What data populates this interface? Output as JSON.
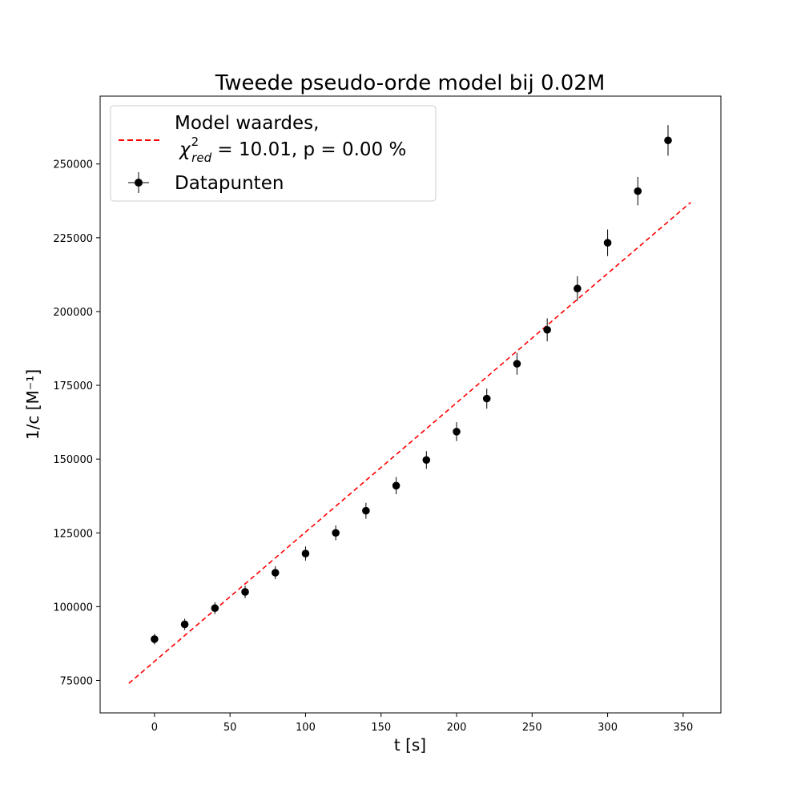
{
  "chart_data": {
    "type": "scatter",
    "title": "Tweede pseudo-orde model bij 0.02M",
    "xlabel": "t [s]",
    "ylabel": "1/c [M⁻¹]",
    "xlim": [
      -36,
      375
    ],
    "ylim": [
      64000,
      273000
    ],
    "x_ticks": [
      0,
      50,
      100,
      150,
      200,
      250,
      300,
      350
    ],
    "y_ticks": [
      75000,
      100000,
      125000,
      150000,
      175000,
      200000,
      225000,
      250000
    ],
    "grid": false,
    "legend_position": "top-left",
    "legend": {
      "model_label_line1": "Model waardes,",
      "model_chi_symbol": "χ",
      "model_chi_sub": "red",
      "model_chi_sup": "2",
      "model_stats": " = 10.01, p = 0.00 %",
      "data_label": "Datapunten"
    },
    "series": [
      {
        "name": "Datapunten",
        "kind": "errorbar",
        "color": "#000000",
        "x": [
          0,
          20,
          40,
          60,
          80,
          100,
          120,
          140,
          160,
          180,
          200,
          220,
          240,
          260,
          280,
          300,
          320,
          340
        ],
        "y": [
          89000,
          94000,
          99500,
          105000,
          111500,
          118000,
          125000,
          132500,
          141000,
          149700,
          159300,
          170500,
          182300,
          193800,
          207800,
          223300,
          240800,
          258000
        ],
        "yerr": [
          1800,
          1900,
          2000,
          2100,
          2200,
          2400,
          2500,
          2700,
          2900,
          3000,
          3200,
          3400,
          3700,
          3900,
          4200,
          4500,
          4800,
          5200
        ],
        "xerr": [
          0.5,
          0.5,
          0.5,
          0.5,
          0.5,
          0.5,
          0.5,
          0.5,
          0.5,
          0.5,
          0.5,
          0.5,
          0.5,
          0.5,
          0.5,
          0.5,
          0.5,
          0.5
        ]
      },
      {
        "name": "Model waardes",
        "kind": "dashed-line",
        "color": "#ff0000",
        "x": [
          -17,
          355
        ],
        "y": [
          74000,
          237000
        ]
      }
    ]
  }
}
